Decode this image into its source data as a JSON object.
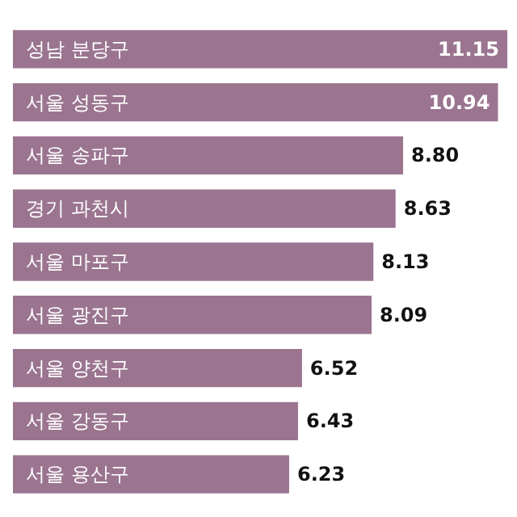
{
  "chart_data": {
    "type": "bar",
    "orientation": "horizontal",
    "categories": [
      "성남 분당구",
      "서울 성동구",
      "서울 송파구",
      "경기 과천시",
      "서울 마포구",
      "서울 광진구",
      "서울 양천구",
      "서울 강동구",
      "서울 용산구"
    ],
    "values": [
      11.15,
      10.94,
      8.8,
      8.63,
      8.13,
      8.09,
      6.52,
      6.43,
      6.23
    ],
    "value_labels": [
      "11.15",
      "10.94",
      "8.80",
      "8.63",
      "8.13",
      "8.09",
      "6.52",
      "6.43",
      "6.23"
    ],
    "color": "#9b7590",
    "data_labels": true
  }
}
